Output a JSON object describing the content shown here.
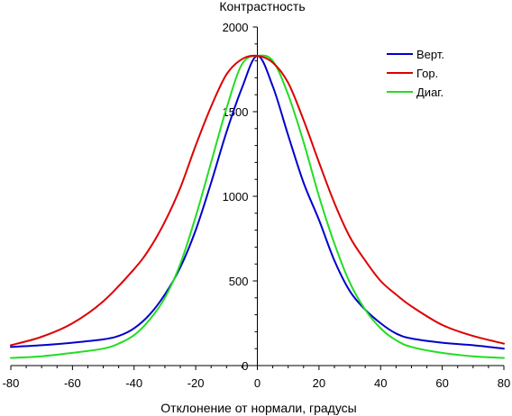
{
  "chart_data": {
    "type": "line",
    "title": "",
    "xlabel": "Отклонение от нормали, градусы",
    "ylabel": "Контрастность",
    "xlim": [
      -80,
      80
    ],
    "ylim": [
      0,
      2000
    ],
    "xticks": [
      -80,
      -60,
      -40,
      -20,
      0,
      20,
      40,
      60,
      80
    ],
    "xtick_labels": [
      "-80",
      "-60",
      "-40",
      "-20",
      "0",
      "20",
      "40",
      "60",
      "80"
    ],
    "yticks": [
      0,
      500,
      1000,
      1500,
      2000
    ],
    "ytick_labels": [
      "0",
      "500",
      "1000",
      "1500",
      "2000"
    ],
    "grid": false,
    "legend_position": "top-right",
    "series": [
      {
        "name": "Верт.",
        "color": "#0000cc",
        "x": [
          -80,
          -70,
          -60,
          -50,
          -45,
          -40,
          -35,
          -30,
          -25,
          -20,
          -15,
          -10,
          -5,
          0,
          5,
          10,
          15,
          20,
          25,
          30,
          35,
          40,
          45,
          50,
          60,
          70,
          80
        ],
        "y": [
          110,
          120,
          135,
          155,
          175,
          220,
          300,
          420,
          580,
          800,
          1080,
          1380,
          1640,
          1830,
          1650,
          1360,
          1080,
          860,
          620,
          440,
          330,
          250,
          190,
          160,
          135,
          120,
          100
        ]
      },
      {
        "name": "Гор.",
        "color": "#dd0000",
        "x": [
          -80,
          -70,
          -60,
          -50,
          -40,
          -35,
          -30,
          -25,
          -20,
          -15,
          -10,
          -5,
          0,
          5,
          10,
          15,
          20,
          25,
          30,
          35,
          40,
          45,
          50,
          60,
          70,
          80
        ],
        "y": [
          120,
          170,
          250,
          380,
          570,
          690,
          850,
          1050,
          1300,
          1530,
          1720,
          1810,
          1830,
          1790,
          1670,
          1450,
          1200,
          960,
          760,
          620,
          500,
          420,
          350,
          240,
          175,
          130
        ]
      },
      {
        "name": "Диаг.",
        "color": "#22dd22",
        "x": [
          -80,
          -70,
          -60,
          -50,
          -45,
          -40,
          -35,
          -30,
          -25,
          -20,
          -15,
          -10,
          -5,
          0,
          5,
          10,
          15,
          20,
          25,
          30,
          35,
          40,
          45,
          50,
          60,
          70,
          80
        ],
        "y": [
          45,
          55,
          75,
          100,
          130,
          180,
          270,
          400,
          600,
          880,
          1200,
          1520,
          1780,
          1830,
          1800,
          1600,
          1320,
          1000,
          720,
          490,
          330,
          220,
          150,
          110,
          75,
          55,
          45
        ]
      }
    ]
  }
}
